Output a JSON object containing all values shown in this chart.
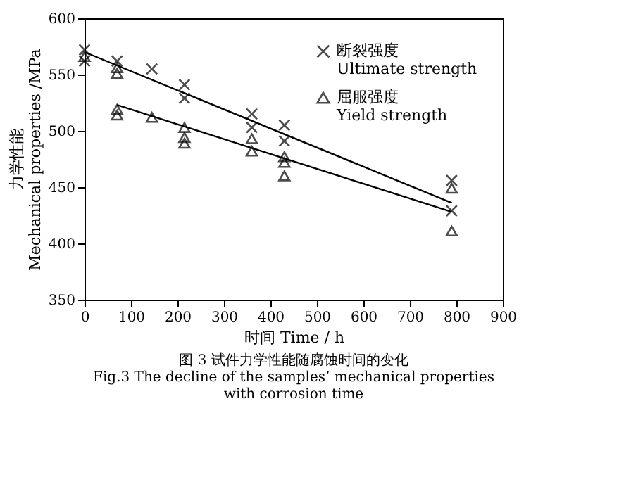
{
  "chart_data": {
    "type": "scatter",
    "xlabel": "时间 Time / h",
    "ylabel": "力学性能\nMechanical properties /MPa",
    "xlim": [
      0,
      900
    ],
    "xticks": [
      0,
      100,
      200,
      300,
      400,
      500,
      600,
      700,
      800,
      900
    ],
    "ylim": [
      350,
      600
    ],
    "yticks": [
      350,
      400,
      450,
      500,
      550,
      600
    ],
    "grid": false,
    "legend": "top right",
    "series": [
      {
        "name": "断裂强度\nUltimate strength",
        "color": "#000000",
        "marker": "cross",
        "x": [
          0,
          0,
          70,
          145,
          215,
          215,
          360,
          360,
          430,
          430,
          790,
          790
        ],
        "values": [
          572,
          562,
          562,
          555,
          541,
          529,
          515,
          503,
          505,
          491,
          456,
          429
        ]
      },
      {
        "name": "屈服强度\nYield strength",
        "color": "#000000",
        "marker": "triangle",
        "x": [
          0,
          70,
          70,
          70,
          70,
          145,
          215,
          215,
          215,
          360,
          360,
          430,
          430,
          430,
          790,
          790
        ],
        "values": [
          566,
          556,
          551,
          519,
          514,
          512,
          503,
          494,
          489,
          493,
          482,
          477,
          472,
          460,
          449,
          411
        ]
      },
      {
        "type": "line",
        "color": "#000000",
        "marker": "none",
        "x": [
          0,
          790
        ],
        "values": [
          570,
          436
        ]
      },
      {
        "type": "line",
        "color": "#000000",
        "marker": "none",
        "x": [
          70,
          790
        ],
        "values": [
          523,
          428
        ]
      }
    ],
    "annotations": [
      "图 3    试件力学性能随腐蚀时间的变化",
      "Fig.3    The decline of the samples’ mechanical properties",
      "with corrosion time"
    ]
  }
}
